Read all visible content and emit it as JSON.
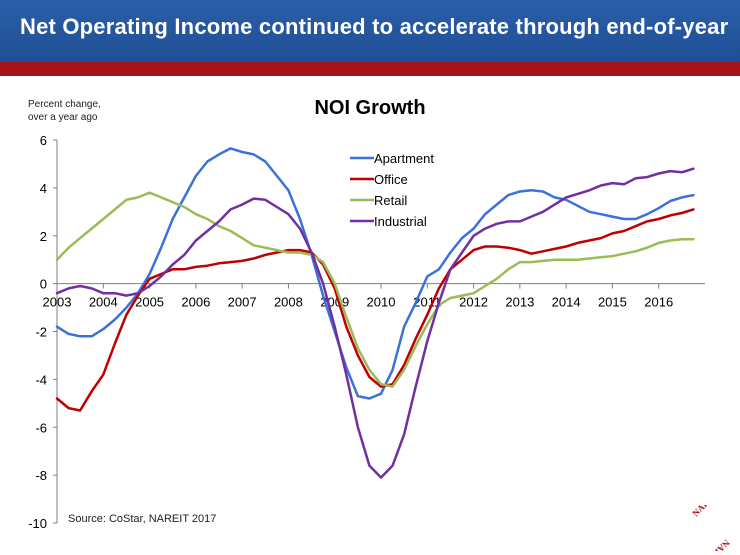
{
  "header": {
    "title": "Net Operating Income continued to accelerate through end-of-year"
  },
  "logo_text": "NAREIT",
  "chart_data": {
    "type": "line",
    "title": "NOI Growth",
    "ylabel": "Percent change,\nover a year ago",
    "ylabel_lines": [
      "Percent change,",
      "over a year ago"
    ],
    "xlabel": "",
    "source": "Source: CoStar, NAREIT 2017",
    "xlim": [
      2003,
      2017
    ],
    "ylim": [
      -10,
      6
    ],
    "yticks": [
      6,
      4,
      2,
      0,
      -2,
      -4,
      -6,
      -8,
      -10
    ],
    "xticks": [
      "2003",
      "2004",
      "2005",
      "2006",
      "2007",
      "2008",
      "2009",
      "2010",
      "2011",
      "2012",
      "2013",
      "2014",
      "2015",
      "2016"
    ],
    "grid": false,
    "legend_position": "top-center",
    "series": [
      {
        "name": "Apartment",
        "color": "#3b72d9",
        "x": [
          2003.0,
          2003.25,
          2003.5,
          2003.75,
          2004.0,
          2004.25,
          2004.5,
          2004.75,
          2005.0,
          2005.25,
          2005.5,
          2005.75,
          2006.0,
          2006.25,
          2006.5,
          2006.75,
          2007.0,
          2007.25,
          2007.5,
          2007.75,
          2008.0,
          2008.25,
          2008.5,
          2008.75,
          2009.0,
          2009.25,
          2009.5,
          2009.75,
          2010.0,
          2010.25,
          2010.5,
          2010.75,
          2011.0,
          2011.25,
          2011.5,
          2011.75,
          2012.0,
          2012.25,
          2012.5,
          2012.75,
          2013.0,
          2013.25,
          2013.5,
          2013.75,
          2014.0,
          2014.25,
          2014.5,
          2014.75,
          2015.0,
          2015.25,
          2015.5,
          2015.75,
          2016.0,
          2016.25,
          2016.5,
          2016.75
        ],
        "values": [
          -1.8,
          -2.1,
          -2.2,
          -2.2,
          -1.9,
          -1.5,
          -1.0,
          -0.4,
          0.4,
          1.5,
          2.7,
          3.6,
          4.5,
          5.1,
          5.4,
          5.65,
          5.5,
          5.4,
          5.1,
          4.5,
          3.9,
          2.7,
          1.2,
          -0.5,
          -2.0,
          -3.5,
          -4.7,
          -4.8,
          -4.6,
          -3.6,
          -1.8,
          -0.8,
          0.3,
          0.6,
          1.3,
          1.9,
          2.3,
          2.9,
          3.3,
          3.7,
          3.85,
          3.9,
          3.85,
          3.6,
          3.5,
          3.25,
          3.0,
          2.9,
          2.8,
          2.7,
          2.7,
          2.9,
          3.15,
          3.45,
          3.6,
          3.7
        ]
      },
      {
        "name": "Office",
        "color": "#c00000",
        "x": [
          2003.0,
          2003.25,
          2003.5,
          2003.75,
          2004.0,
          2004.25,
          2004.5,
          2004.75,
          2005.0,
          2005.25,
          2005.5,
          2005.75,
          2006.0,
          2006.25,
          2006.5,
          2006.75,
          2007.0,
          2007.25,
          2007.5,
          2007.75,
          2008.0,
          2008.25,
          2008.5,
          2008.75,
          2009.0,
          2009.25,
          2009.5,
          2009.75,
          2010.0,
          2010.25,
          2010.5,
          2010.75,
          2011.0,
          2011.25,
          2011.5,
          2011.75,
          2012.0,
          2012.25,
          2012.5,
          2012.75,
          2013.0,
          2013.25,
          2013.5,
          2013.75,
          2014.0,
          2014.25,
          2014.5,
          2014.75,
          2015.0,
          2015.25,
          2015.5,
          2015.75,
          2016.0,
          2016.25,
          2016.5,
          2016.75
        ],
        "values": [
          -4.8,
          -5.2,
          -5.3,
          -4.5,
          -3.8,
          -2.5,
          -1.3,
          -0.5,
          0.2,
          0.4,
          0.6,
          0.6,
          0.7,
          0.75,
          0.85,
          0.9,
          0.95,
          1.05,
          1.2,
          1.3,
          1.4,
          1.4,
          1.3,
          0.8,
          -0.2,
          -1.8,
          -3.0,
          -3.9,
          -4.3,
          -4.2,
          -3.4,
          -2.3,
          -1.3,
          -0.2,
          0.6,
          1.0,
          1.4,
          1.55,
          1.55,
          1.5,
          1.4,
          1.25,
          1.35,
          1.45,
          1.55,
          1.7,
          1.8,
          1.9,
          2.1,
          2.2,
          2.4,
          2.6,
          2.7,
          2.85,
          2.95,
          3.1
        ]
      },
      {
        "name": "Retail",
        "color": "#9bbb59",
        "x": [
          2003.0,
          2003.25,
          2003.5,
          2003.75,
          2004.0,
          2004.25,
          2004.5,
          2004.75,
          2005.0,
          2005.25,
          2005.5,
          2005.75,
          2006.0,
          2006.25,
          2006.5,
          2006.75,
          2007.0,
          2007.25,
          2007.5,
          2007.75,
          2008.0,
          2008.25,
          2008.5,
          2008.75,
          2009.0,
          2009.25,
          2009.5,
          2009.75,
          2010.0,
          2010.25,
          2010.5,
          2010.75,
          2011.0,
          2011.25,
          2011.5,
          2011.75,
          2012.0,
          2012.25,
          2012.5,
          2012.75,
          2013.0,
          2013.25,
          2013.5,
          2013.75,
          2014.0,
          2014.25,
          2014.5,
          2014.75,
          2015.0,
          2015.25,
          2015.5,
          2015.75,
          2016.0,
          2016.25,
          2016.5,
          2016.75
        ],
        "values": [
          1.0,
          1.5,
          1.9,
          2.3,
          2.7,
          3.1,
          3.5,
          3.6,
          3.8,
          3.6,
          3.4,
          3.2,
          2.9,
          2.7,
          2.4,
          2.2,
          1.9,
          1.6,
          1.5,
          1.4,
          1.3,
          1.3,
          1.2,
          0.9,
          0.0,
          -1.4,
          -2.7,
          -3.6,
          -4.2,
          -4.3,
          -3.6,
          -2.6,
          -1.7,
          -0.9,
          -0.6,
          -0.5,
          -0.4,
          -0.1,
          0.2,
          0.6,
          0.9,
          0.9,
          0.95,
          1.0,
          1.0,
          1.0,
          1.05,
          1.1,
          1.15,
          1.25,
          1.35,
          1.5,
          1.7,
          1.8,
          1.85,
          1.85
        ]
      },
      {
        "name": "Industrial",
        "color": "#7030a0",
        "x": [
          2003.0,
          2003.25,
          2003.5,
          2003.75,
          2004.0,
          2004.25,
          2004.5,
          2004.75,
          2005.0,
          2005.25,
          2005.5,
          2005.75,
          2006.0,
          2006.25,
          2006.5,
          2006.75,
          2007.0,
          2007.25,
          2007.5,
          2007.75,
          2008.0,
          2008.25,
          2008.5,
          2008.75,
          2009.0,
          2009.25,
          2009.5,
          2009.75,
          2010.0,
          2010.25,
          2010.5,
          2010.75,
          2011.0,
          2011.25,
          2011.5,
          2011.75,
          2012.0,
          2012.25,
          2012.5,
          2012.75,
          2013.0,
          2013.25,
          2013.5,
          2013.75,
          2014.0,
          2014.25,
          2014.5,
          2014.75,
          2015.0,
          2015.25,
          2015.5,
          2015.75,
          2016.0,
          2016.25,
          2016.5,
          2016.75
        ],
        "values": [
          -0.4,
          -0.2,
          -0.1,
          -0.2,
          -0.4,
          -0.4,
          -0.5,
          -0.4,
          -0.1,
          0.3,
          0.8,
          1.2,
          1.8,
          2.2,
          2.6,
          3.1,
          3.3,
          3.55,
          3.5,
          3.2,
          2.9,
          2.3,
          1.3,
          0.0,
          -1.8,
          -3.8,
          -6.0,
          -7.6,
          -8.1,
          -7.6,
          -6.3,
          -4.3,
          -2.4,
          -0.8,
          0.6,
          1.3,
          2.0,
          2.3,
          2.5,
          2.6,
          2.6,
          2.8,
          3.0,
          3.3,
          3.6,
          3.75,
          3.9,
          4.1,
          4.2,
          4.15,
          4.4,
          4.45,
          4.6,
          4.7,
          4.65,
          4.8
        ]
      }
    ]
  }
}
